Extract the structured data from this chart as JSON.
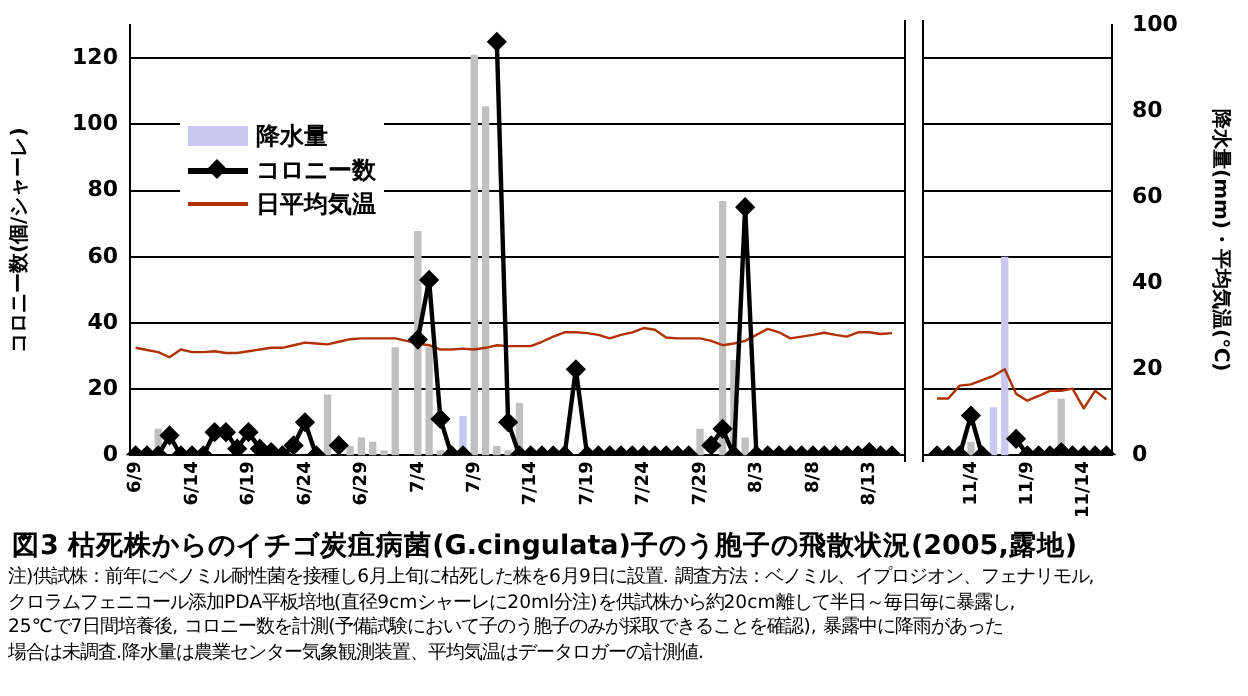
{
  "chart_data": {
    "type": "line",
    "title": "図3 枯死株からのイチゴ炭疽病菌(G.cingulata)子のう胞子の飛散状況(2005,露地)",
    "ylabel": "コロニー数(個/シャーレ)",
    "y2label": "降水量(mm)・平均気温(℃)",
    "annotations": [
      "注)供試株：前年にベノミル耐性菌を接種し6月上旬に枯死した株を6月9日に設置. 調査方法：ベノミル、イプロジオン、フェナリモル,",
      "クロラムフェニコール添加PDA平板培地(直径9cmシャーレに20ml分注)を供試株から約20cm離して半日～毎日毎に暴露し,",
      "25℃で7日間培養後, コロニー数を計測(予備試験において子のう胞子のみが採取できることを確認), 暴露中に降雨があった",
      "場合は未調査.降水量は農業センター気象観測装置、平均気温はデータロガーの計測値."
    ],
    "categories": [
      "6/9",
      null,
      null,
      null,
      null,
      "6/14",
      null,
      null,
      null,
      null,
      "6/19",
      null,
      null,
      null,
      null,
      "6/24",
      null,
      null,
      null,
      null,
      "6/29",
      null,
      null,
      null,
      null,
      "7/4",
      null,
      null,
      null,
      null,
      "7/9",
      null,
      null,
      null,
      null,
      "7/14",
      null,
      null,
      null,
      null,
      "7/19",
      null,
      null,
      null,
      null,
      "7/24",
      null,
      null,
      null,
      null,
      "7/29",
      null,
      null,
      null,
      null,
      "8/3",
      null,
      null,
      null,
      null,
      "8/8",
      null,
      null,
      null,
      null,
      "8/13",
      null,
      null,
      null,
      null,
      null,
      null,
      null,
      null,
      "11/4",
      null,
      null,
      null,
      null,
      "11/9",
      null,
      null,
      null,
      null,
      "11/14",
      null,
      null
    ],
    "series": [
      {
        "name": "降水量",
        "type": "bar",
        "axis": "y2",
        "color": "#c8c8f0",
        "colors": [
          "#c0c0c0",
          "#c0c0c0",
          "#c0c0c0",
          "#c0c0c0",
          "#c0c0c0",
          "#c0c0c0",
          "#c0c0c0",
          "#c0c0c0",
          "#c0c0c0",
          "#c0c0c0",
          "#c0c0c0",
          "#c0c0c0",
          "#c0c0c0",
          "#c0c0c0",
          "#c0c0c0",
          "#c0c0c0",
          "#c0c0c0",
          "#c0c0c0",
          "#c0c0c0",
          "#c0c0c0",
          "#c0c0c0",
          "#c0c0c0",
          "#c0c0c0",
          "#c0c0c0",
          "#c0c0c0",
          "#c0c0c0",
          "#c0c0c0",
          "#c0c0c0",
          "#c0c0c0",
          "#c8c8f0",
          "#c0c0c0",
          "#c0c0c0",
          "#c0c0c0",
          "#c0c0c0",
          "#c0c0c0",
          "#c0c0c0",
          "#c0c0c0",
          "#c0c0c0",
          "#c0c0c0",
          "#c0c0c0",
          "#c0c0c0",
          "#c0c0c0",
          "#c0c0c0",
          "#c0c0c0",
          "#c0c0c0",
          "#c0c0c0",
          "#c0c0c0",
          "#c0c0c0",
          "#c0c0c0",
          "#c0c0c0",
          "#c0c0c0",
          "#c0c0c0",
          "#c0c0c0",
          "#c0c0c0",
          "#c0c0c0",
          "#c0c0c0",
          "#c0c0c0",
          "#c0c0c0",
          "#c0c0c0",
          "#c0c0c0",
          "#c0c0c0",
          "#c0c0c0",
          "#c0c0c0",
          "#c0c0c0",
          "#c0c0c0",
          "#c0c0c0",
          "#c0c0c0",
          "#c0c0c0",
          "#c0c0c0",
          "#c0c0c0",
          "#c0c0c0",
          "#c0c0c0",
          "#c0c0c0",
          "#c0c0c0",
          "#c0c0c0",
          "#c0c0c0",
          "#c8c8f0",
          "#c8c8f0",
          "#c0c0c0",
          "#c0c0c0",
          "#c0c0c0",
          "#c0c0c0",
          "#c0c0c0",
          "#c0c0c0",
          "#c0c0c0",
          "#c0c0c0",
          "#c0c0c0"
        ],
        "values": [
          null,
          null,
          6,
          null,
          null,
          null,
          null,
          null,
          null,
          null,
          null,
          null,
          null,
          null,
          null,
          null,
          null,
          14,
          null,
          2,
          4,
          3,
          1,
          25,
          null,
          52,
          25,
          1,
          null,
          9,
          93,
          81,
          2,
          1,
          12,
          null,
          null,
          null,
          null,
          null,
          null,
          null,
          null,
          null,
          null,
          null,
          null,
          null,
          null,
          null,
          6,
          null,
          59,
          22,
          4,
          null,
          null,
          null,
          null,
          null,
          null,
          null,
          null,
          null,
          null,
          null,
          null,
          null,
          null,
          null,
          null,
          null,
          null,
          null,
          3,
          null,
          11,
          46,
          null,
          null,
          null,
          null,
          13,
          null,
          null,
          null,
          null
        ]
      },
      {
        "name": "コロニー数",
        "marker": "diamond",
        "color": "#000000",
        "values": [
          0,
          0,
          0,
          6,
          0,
          0,
          0,
          7,
          7,
          2,
          7,
          2,
          1,
          0,
          3,
          10,
          0,
          null,
          3,
          null,
          null,
          null,
          null,
          null,
          null,
          35,
          53,
          11,
          0,
          0,
          null,
          null,
          125,
          10,
          0,
          0,
          0,
          0,
          0,
          26,
          0,
          0,
          0,
          0,
          0,
          0,
          0,
          0,
          0,
          0,
          null,
          3,
          8,
          0,
          75,
          0,
          0,
          0,
          0,
          0,
          0,
          0,
          0,
          0,
          0,
          1,
          0,
          0,
          null,
          null,
          null,
          0,
          0,
          0,
          12,
          0,
          null,
          null,
          5,
          0,
          0,
          0,
          1,
          0,
          0,
          0,
          0
        ]
      },
      {
        "name": "日平均気温",
        "axis": "y2",
        "marker": "none",
        "color": "#b03000",
        "values": [
          25,
          24.5,
          24,
          22.8,
          24.6,
          24,
          24,
          24.2,
          23.8,
          23.8,
          24.2,
          24.6,
          25,
          25,
          25.6,
          26.2,
          26,
          25.8,
          26.4,
          27,
          27.2,
          27.2,
          27.2,
          27.2,
          26.6,
          26,
          25.6,
          24.6,
          24.6,
          24.8,
          24.6,
          25,
          25.6,
          25.4,
          25.4,
          25.4,
          26.4,
          27.6,
          28.6,
          28.6,
          28.4,
          28,
          27.2,
          28,
          28.6,
          29.6,
          29.2,
          27.4,
          27.2,
          27.2,
          27.2,
          26.6,
          25.6,
          26,
          26.6,
          28,
          29.4,
          28.6,
          27.2,
          27.6,
          28,
          28.5,
          28,
          27.6,
          28.6,
          28.6,
          28.2,
          28.4,
          null,
          null,
          null,
          13.2,
          13.2,
          16.2,
          16.5,
          17.5,
          18.5,
          20,
          14.3,
          12.7,
          13.8,
          15,
          15,
          15.5,
          10.9,
          15,
          13
        ]
      }
    ],
    "ylim": [
      0,
      130
    ],
    "yticks": [
      0,
      20,
      40,
      60,
      80,
      100,
      120
    ],
    "y2lim": [
      0,
      100
    ],
    "y2ticks": [
      0,
      20,
      40,
      60,
      80,
      100
    ],
    "grid": "y",
    "legend": "top left"
  }
}
